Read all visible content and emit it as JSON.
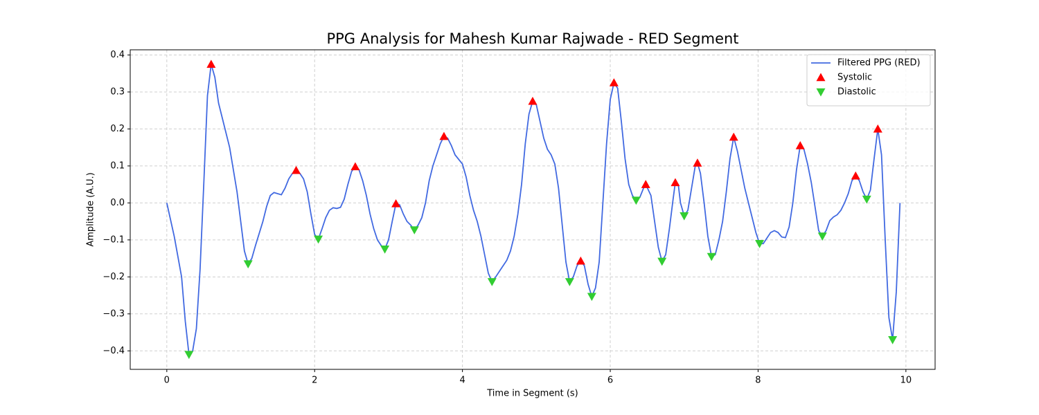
{
  "chart_data": {
    "type": "line",
    "title": "PPG Analysis for Mahesh Kumar Rajwade - RED Segment",
    "xlabel": "Time in Segment (s)",
    "ylabel": "Amplitude (A.U.)",
    "xlim": [
      -0.495,
      10.395
    ],
    "xticks": [
      0,
      2,
      4,
      6,
      8,
      10
    ],
    "ylim": [
      -0.45,
      0.414
    ],
    "yticks": [
      {
        "value": -0.4,
        "label": "−0.4"
      },
      {
        "value": -0.3,
        "label": "−0.3"
      },
      {
        "value": -0.2,
        "label": "−0.2"
      },
      {
        "value": -0.1,
        "label": "−0.1"
      },
      {
        "value": 0,
        "label": "0.0"
      },
      {
        "value": 0.1,
        "label": "0.1"
      },
      {
        "value": 0.2,
        "label": "0.2"
      },
      {
        "value": 0.3,
        "label": "0.3"
      },
      {
        "value": 0.4,
        "label": "0.4"
      }
    ],
    "grid": true,
    "legend": "upper right",
    "series": [
      {
        "name": "Filtered PPG (RED)",
        "type": "line",
        "color": "#4169e1",
        "x": [
          0,
          0.1,
          0.2,
          0.25,
          0.3,
          0.35,
          0.4,
          0.45,
          0.5,
          0.55,
          0.6,
          0.65,
          0.7,
          0.75,
          0.8,
          0.85,
          0.9,
          0.95,
          1.0,
          1.05,
          1.1,
          1.15,
          1.2,
          1.3,
          1.35,
          1.4,
          1.45,
          1.5,
          1.55,
          1.6,
          1.65,
          1.7,
          1.75,
          1.8,
          1.85,
          1.9,
          1.95,
          2.0,
          2.05,
          2.1,
          2.15,
          2.2,
          2.25,
          2.3,
          2.35,
          2.4,
          2.45,
          2.5,
          2.55,
          2.6,
          2.65,
          2.7,
          2.75,
          2.8,
          2.85,
          2.9,
          2.95,
          3.0,
          3.05,
          3.1,
          3.15,
          3.2,
          3.25,
          3.3,
          3.35,
          3.4,
          3.45,
          3.5,
          3.55,
          3.6,
          3.65,
          3.7,
          3.75,
          3.8,
          3.85,
          3.9,
          4.0,
          4.05,
          4.1,
          4.15,
          4.2,
          4.25,
          4.3,
          4.35,
          4.4,
          4.45,
          4.5,
          4.55,
          4.6,
          4.65,
          4.7,
          4.75,
          4.8,
          4.85,
          4.9,
          4.95,
          5.0,
          5.05,
          5.1,
          5.15,
          5.2,
          5.25,
          5.3,
          5.35,
          5.4,
          5.45,
          5.5,
          5.55,
          5.6,
          5.65,
          5.7,
          5.75,
          5.8,
          5.85,
          5.9,
          5.95,
          6.0,
          6.05,
          6.1,
          6.15,
          6.2,
          6.25,
          6.3,
          6.35,
          6.4,
          6.45,
          6.48,
          6.55,
          6.6,
          6.65,
          6.7,
          6.75,
          6.8,
          6.85,
          6.88,
          6.92,
          6.95,
          7.0,
          7.05,
          7.1,
          7.15,
          7.18,
          7.22,
          7.27,
          7.32,
          7.37,
          7.42,
          7.47,
          7.52,
          7.57,
          7.62,
          7.67,
          7.72,
          7.77,
          7.82,
          7.87,
          7.92,
          7.97,
          8.02,
          8.07,
          8.12,
          8.17,
          8.22,
          8.27,
          8.32,
          8.37,
          8.42,
          8.47,
          8.52,
          8.57,
          8.62,
          8.67,
          8.72,
          8.77,
          8.82,
          8.87,
          8.92,
          8.97,
          9.02,
          9.07,
          9.12,
          9.17,
          9.22,
          9.27,
          9.32,
          9.37,
          9.42,
          9.47,
          9.52,
          9.57,
          9.62,
          9.67,
          9.72,
          9.77,
          9.82,
          9.87,
          9.92
        ],
        "values": [
          0,
          -0.09,
          -0.2,
          -0.32,
          -0.41,
          -0.4,
          -0.34,
          -0.18,
          0.05,
          0.29,
          0.375,
          0.34,
          0.27,
          0.23,
          0.19,
          0.15,
          0.09,
          0.03,
          -0.05,
          -0.13,
          -0.165,
          -0.15,
          -0.115,
          -0.05,
          -0.01,
          0.02,
          0.028,
          0.025,
          0.022,
          0.04,
          0.065,
          0.08,
          0.088,
          0.08,
          0.065,
          0.03,
          -0.03,
          -0.085,
          -0.098,
          -0.07,
          -0.04,
          -0.02,
          -0.013,
          -0.015,
          -0.012,
          0.01,
          0.05,
          0.085,
          0.098,
          0.09,
          0.06,
          0.02,
          -0.03,
          -0.07,
          -0.1,
          -0.115,
          -0.125,
          -0.1,
          -0.05,
          -0.002,
          -0.005,
          -0.03,
          -0.05,
          -0.06,
          -0.073,
          -0.06,
          -0.04,
          0.0,
          0.06,
          0.1,
          0.13,
          0.16,
          0.18,
          0.175,
          0.155,
          0.13,
          0.105,
          0.07,
          0.02,
          -0.02,
          -0.05,
          -0.09,
          -0.14,
          -0.19,
          -0.213,
          -0.2,
          -0.185,
          -0.17,
          -0.155,
          -0.13,
          -0.09,
          -0.03,
          0.05,
          0.16,
          0.24,
          0.275,
          0.265,
          0.22,
          0.175,
          0.145,
          0.13,
          0.105,
          0.04,
          -0.06,
          -0.16,
          -0.213,
          -0.2,
          -0.17,
          -0.157,
          -0.17,
          -0.22,
          -0.253,
          -0.23,
          -0.16,
          0.0,
          0.16,
          0.28,
          0.325,
          0.31,
          0.22,
          0.12,
          0.05,
          0.02,
          0.007,
          0.015,
          0.04,
          0.05,
          0.02,
          -0.05,
          -0.12,
          -0.158,
          -0.14,
          -0.07,
          0.01,
          0.055,
          0.05,
          0.0,
          -0.035,
          -0.02,
          0.04,
          0.1,
          0.108,
          0.08,
          0.0,
          -0.09,
          -0.145,
          -0.14,
          -0.1,
          -0.05,
          0.03,
          0.12,
          0.178,
          0.14,
          0.09,
          0.04,
          0.0,
          -0.04,
          -0.08,
          -0.11,
          -0.11,
          -0.095,
          -0.08,
          -0.075,
          -0.08,
          -0.092,
          -0.094,
          -0.065,
          0.0,
          0.09,
          0.155,
          0.145,
          0.105,
          0.055,
          -0.01,
          -0.075,
          -0.09,
          -0.075,
          -0.048,
          -0.038,
          -0.032,
          -0.02,
          0.0,
          0.025,
          0.06,
          0.073,
          0.06,
          0.03,
          0.01,
          0.035,
          0.12,
          0.2,
          0.13,
          -0.1,
          -0.31,
          -0.37,
          -0.24,
          0.0
        ]
      },
      {
        "name": "Systolic",
        "type": "scatter",
        "marker": "triangle-up",
        "color": "#ff0000",
        "x": [
          0.6,
          1.75,
          2.55,
          3.1,
          3.75,
          4.95,
          5.6,
          6.05,
          6.48,
          6.88,
          7.18,
          7.67,
          8.57,
          9.32,
          9.62
        ],
        "values": [
          0.375,
          0.088,
          0.098,
          -0.002,
          0.18,
          0.275,
          -0.157,
          0.325,
          0.05,
          0.055,
          0.108,
          0.178,
          0.155,
          0.073,
          0.2
        ]
      },
      {
        "name": "Diastolic",
        "type": "scatter",
        "marker": "triangle-down",
        "color": "#32cd32",
        "x": [
          0.3,
          1.1,
          2.05,
          2.95,
          3.35,
          4.4,
          5.45,
          5.75,
          6.35,
          6.7,
          7.0,
          7.37,
          8.02,
          8.87,
          9.47,
          9.82
        ],
        "values": [
          -0.41,
          -0.165,
          -0.098,
          -0.125,
          -0.073,
          -0.213,
          -0.213,
          -0.253,
          0.007,
          -0.158,
          -0.035,
          -0.145,
          -0.11,
          -0.09,
          0.01,
          -0.37
        ]
      }
    ]
  }
}
